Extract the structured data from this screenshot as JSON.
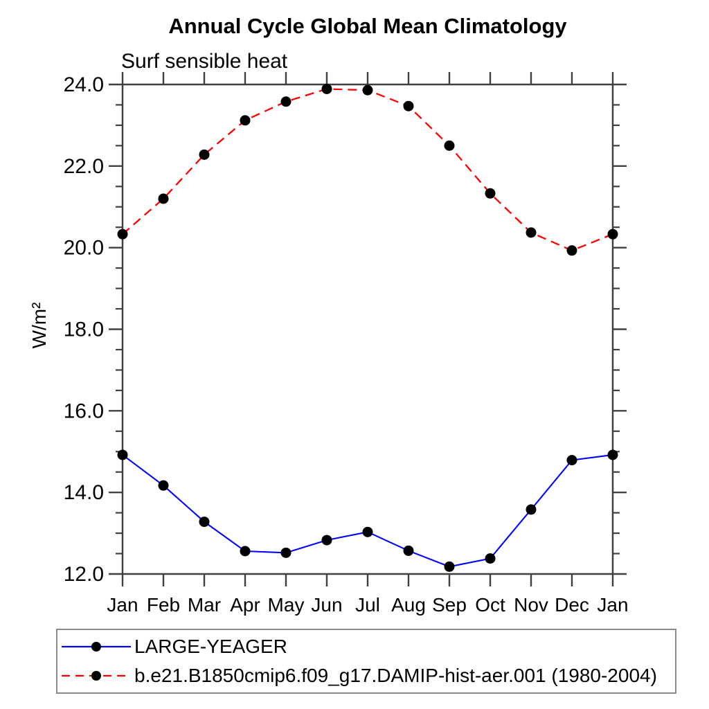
{
  "chart_data": {
    "type": "line",
    "title": "Annual Cycle Global Mean Climatology",
    "subtitle": "Surf sensible heat",
    "ylabel": "W/m²",
    "xlabel": "",
    "categories": [
      "Jan",
      "Feb",
      "Mar",
      "Apr",
      "May",
      "Jun",
      "Jul",
      "Aug",
      "Sep",
      "Oct",
      "Nov",
      "Dec",
      "Jan"
    ],
    "ylim": [
      12.0,
      24.0
    ],
    "ytick_major_step": 2.0,
    "ytick_minor_step": 0.5,
    "ytick_labels": [
      "12.0",
      "14.0",
      "16.0",
      "18.0",
      "20.0",
      "22.0",
      "24.0"
    ],
    "grid": false,
    "legend_position": "bottom",
    "axis_color": "#404040",
    "series": [
      {
        "name": "LARGE-YEAGER",
        "color": "#0000ff",
        "line_style": "solid",
        "marker": "filled-circle",
        "marker_color": "#000000",
        "values": [
          14.92,
          14.17,
          13.28,
          12.56,
          12.52,
          12.83,
          13.03,
          12.57,
          12.18,
          12.38,
          13.58,
          14.79,
          14.92
        ]
      },
      {
        "name": "b.e21.B1850cmip6.f09_g17.DAMIP-hist-aer.001 (1980-2004)",
        "color": "#ff0000",
        "line_style": "dashed",
        "marker": "filled-circle",
        "marker_color": "#000000",
        "values": [
          20.33,
          21.2,
          22.28,
          23.12,
          23.58,
          23.89,
          23.86,
          23.47,
          22.5,
          21.33,
          20.37,
          19.93,
          20.33
        ]
      }
    ]
  }
}
